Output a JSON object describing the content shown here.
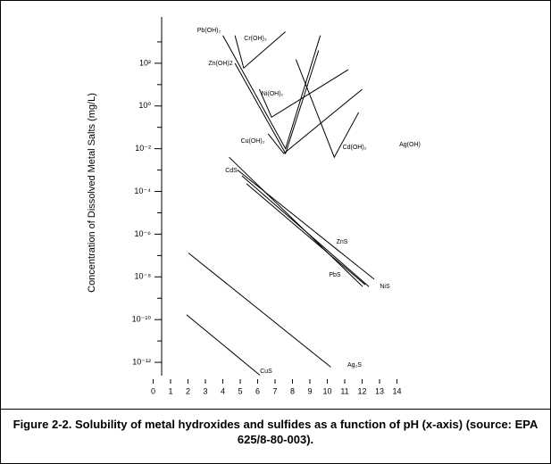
{
  "chart_data": {
    "type": "line",
    "ylabel": "Concentration of Dissolved Metal Salts (mg/L)",
    "caption": "Figure 2-2.  Solubility of metal hydroxides and sulfides as a function of pH (x-axis) (source: EPA 625/8-80-003).",
    "log_y": true,
    "color": "#000000",
    "xlim": [
      0,
      14
    ],
    "xticks": [
      0,
      1,
      2,
      3,
      4,
      5,
      6,
      7,
      8,
      9,
      10,
      11,
      12,
      13,
      14
    ],
    "ylim": [
      1e-13,
      10000
    ],
    "yticks": [
      {
        "value": 100,
        "label": "10²"
      },
      {
        "value": 1,
        "label": "10⁰"
      },
      {
        "value": 0.01,
        "label": "10⁻²"
      },
      {
        "value": 0.0001,
        "label": "10⁻⁴"
      },
      {
        "value": 1e-06,
        "label": "10⁻⁶"
      },
      {
        "value": 1e-08,
        "label": "10⁻⁸"
      },
      {
        "value": 1e-10,
        "label": "10⁻¹⁰"
      },
      {
        "value": 1e-12,
        "label": "10⁻¹²"
      }
    ],
    "y_minor_ticks": [
      1000,
      10,
      0.1,
      0.001,
      1e-05,
      1e-07,
      1e-09,
      1e-11
    ],
    "annotations": [
      "Ag(OH)"
    ],
    "series": [
      {
        "name": "Pb(OH)₂",
        "x": [
          4.0,
          7.6,
          9.6
        ],
        "values": [
          2000,
          0.01,
          2000
        ]
      },
      {
        "name": "Cr(OH)₃",
        "x": [
          4.7,
          5.2,
          7.6
        ],
        "values": [
          2000,
          60,
          3000
        ]
      },
      {
        "name": "Zn(OH)2",
        "x": [
          4.7,
          7.6,
          9.5
        ],
        "values": [
          100,
          0.006,
          400
        ]
      },
      {
        "name": "Ni(OH)₂",
        "x": [
          6.1,
          6.8,
          11.2
        ],
        "values": [
          6,
          0.3,
          50
        ]
      },
      {
        "name": "Cu(OH)₂",
        "x": [
          6.6,
          7.5,
          12.0
        ],
        "values": [
          0.05,
          0.006,
          6
        ]
      },
      {
        "name": "Cd(OH)₂",
        "x": [
          8.2,
          10.4,
          11.8
        ],
        "values": [
          150,
          0.004,
          0.5
        ]
      },
      {
        "name": "CdS",
        "x": [
          4.36,
          12.03
        ],
        "values": [
          0.004,
          3.5e-09
        ]
      },
      {
        "name": "ZnS",
        "x": [
          4.85,
          12.69
        ],
        "values": [
          0.001,
          7.8e-09
        ]
      },
      {
        "name": "PbS",
        "x": [
          5.36,
          12.18
        ],
        "values": [
          0.00023,
          4.3e-09
        ]
      },
      {
        "name": "NiS",
        "x": [
          5.1,
          12.39
        ],
        "values": [
          0.00054,
          3.5e-09
        ]
      },
      {
        "name": "Ag₂S",
        "x": [
          2.03,
          10.2
        ],
        "values": [
          1.3e-07,
          6e-13
        ]
      },
      {
        "name": "CuS",
        "x": [
          1.92,
          6.13
        ],
        "values": [
          1.7e-10,
          2.5e-13
        ]
      }
    ]
  }
}
